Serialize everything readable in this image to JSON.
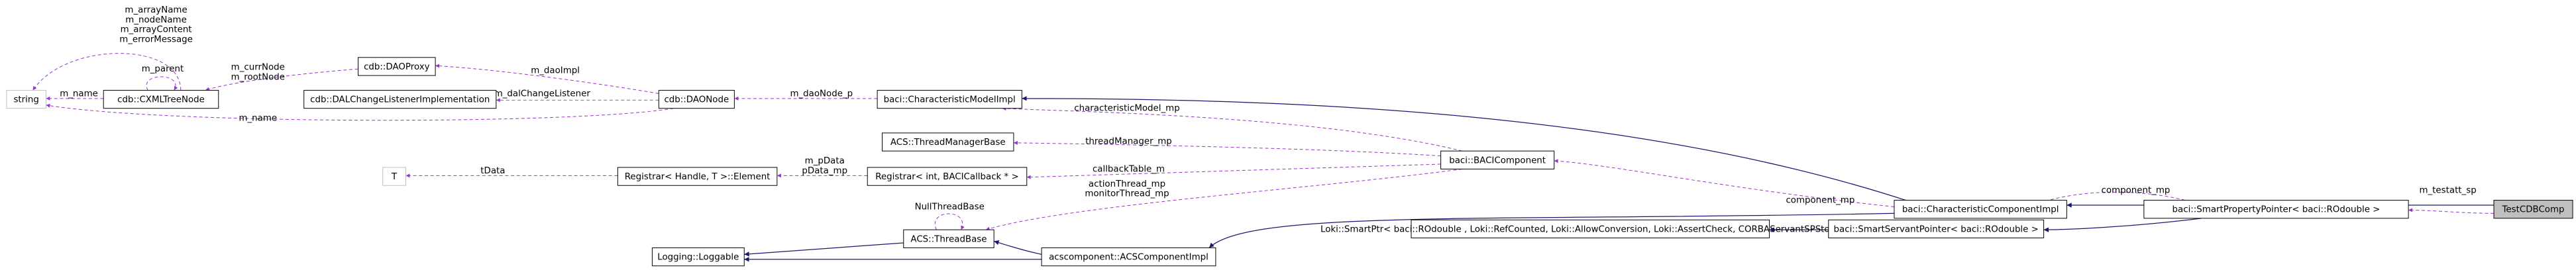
{
  "nodes": [
    {
      "label": "string"
    },
    {
      "label": "cdb::CXMLTreeNode"
    },
    {
      "label": "cdb::DAOProxy"
    },
    {
      "label": "cdb::DALChangeListenerImplementation"
    },
    {
      "label": "cdb::DAONode"
    },
    {
      "label": "baci::CharacteristicModelImpl"
    },
    {
      "label": "ACS::ThreadManagerBase"
    },
    {
      "label": "Registrar< int, BACICallback * >"
    },
    {
      "label": "Registrar< Handle, T >::Element"
    },
    {
      "label": "T"
    },
    {
      "label": "baci::BACIComponent"
    },
    {
      "label": "baci::CharacteristicComponentImpl"
    },
    {
      "label": "TestCDBComp"
    },
    {
      "label": "ACS::ThreadBase"
    },
    {
      "label": "Logging::Loggable"
    },
    {
      "label": "acscomponent::ACSComponentImpl"
    },
    {
      "label": "Loki::SmartPtr< baci::ROdouble , Loki::RefCounted, Loki::AllowConversion, Loki::AssertCheck, CORBAServantSPStorage >"
    },
    {
      "label": "baci::SmartServantPointer< baci::ROdouble >"
    },
    {
      "label": "baci::SmartPropertyPointer< baci::ROdouble >"
    }
  ],
  "edges": [
    {
      "labels": [
        "m_arrayName",
        "m_nodeName",
        "m_arrayContent",
        "m_errorMessage"
      ]
    },
    {
      "labels": [
        "m_parent"
      ]
    },
    {
      "labels": [
        "m_currNode",
        "m_rootNode"
      ]
    },
    {
      "labels": [
        "m_name"
      ]
    },
    {
      "labels": [
        "m_daoImpl"
      ]
    },
    {
      "labels": [
        "m_dalChangeListener"
      ]
    },
    {
      "labels": [
        "m_name"
      ]
    },
    {
      "labels": [
        "m_daoNode_p"
      ]
    },
    {
      "labels": [
        "characteristicModel_mp"
      ]
    },
    {
      "labels": [
        "threadManager_mp"
      ]
    },
    {
      "labels": [
        "callbackTable_m"
      ]
    },
    {
      "labels": [
        "m_pData",
        "pData_mp"
      ]
    },
    {
      "labels": [
        "tData"
      ]
    },
    {
      "labels": [
        "actionThread_mp",
        "monitorThread_mp"
      ]
    },
    {
      "labels": [
        "NullThreadBase"
      ]
    },
    {
      "labels": [
        "component_mp"
      ]
    },
    {
      "labels": [
        "component_mp"
      ]
    },
    {
      "labels": [
        "m_testatt_sp"
      ]
    }
  ]
}
